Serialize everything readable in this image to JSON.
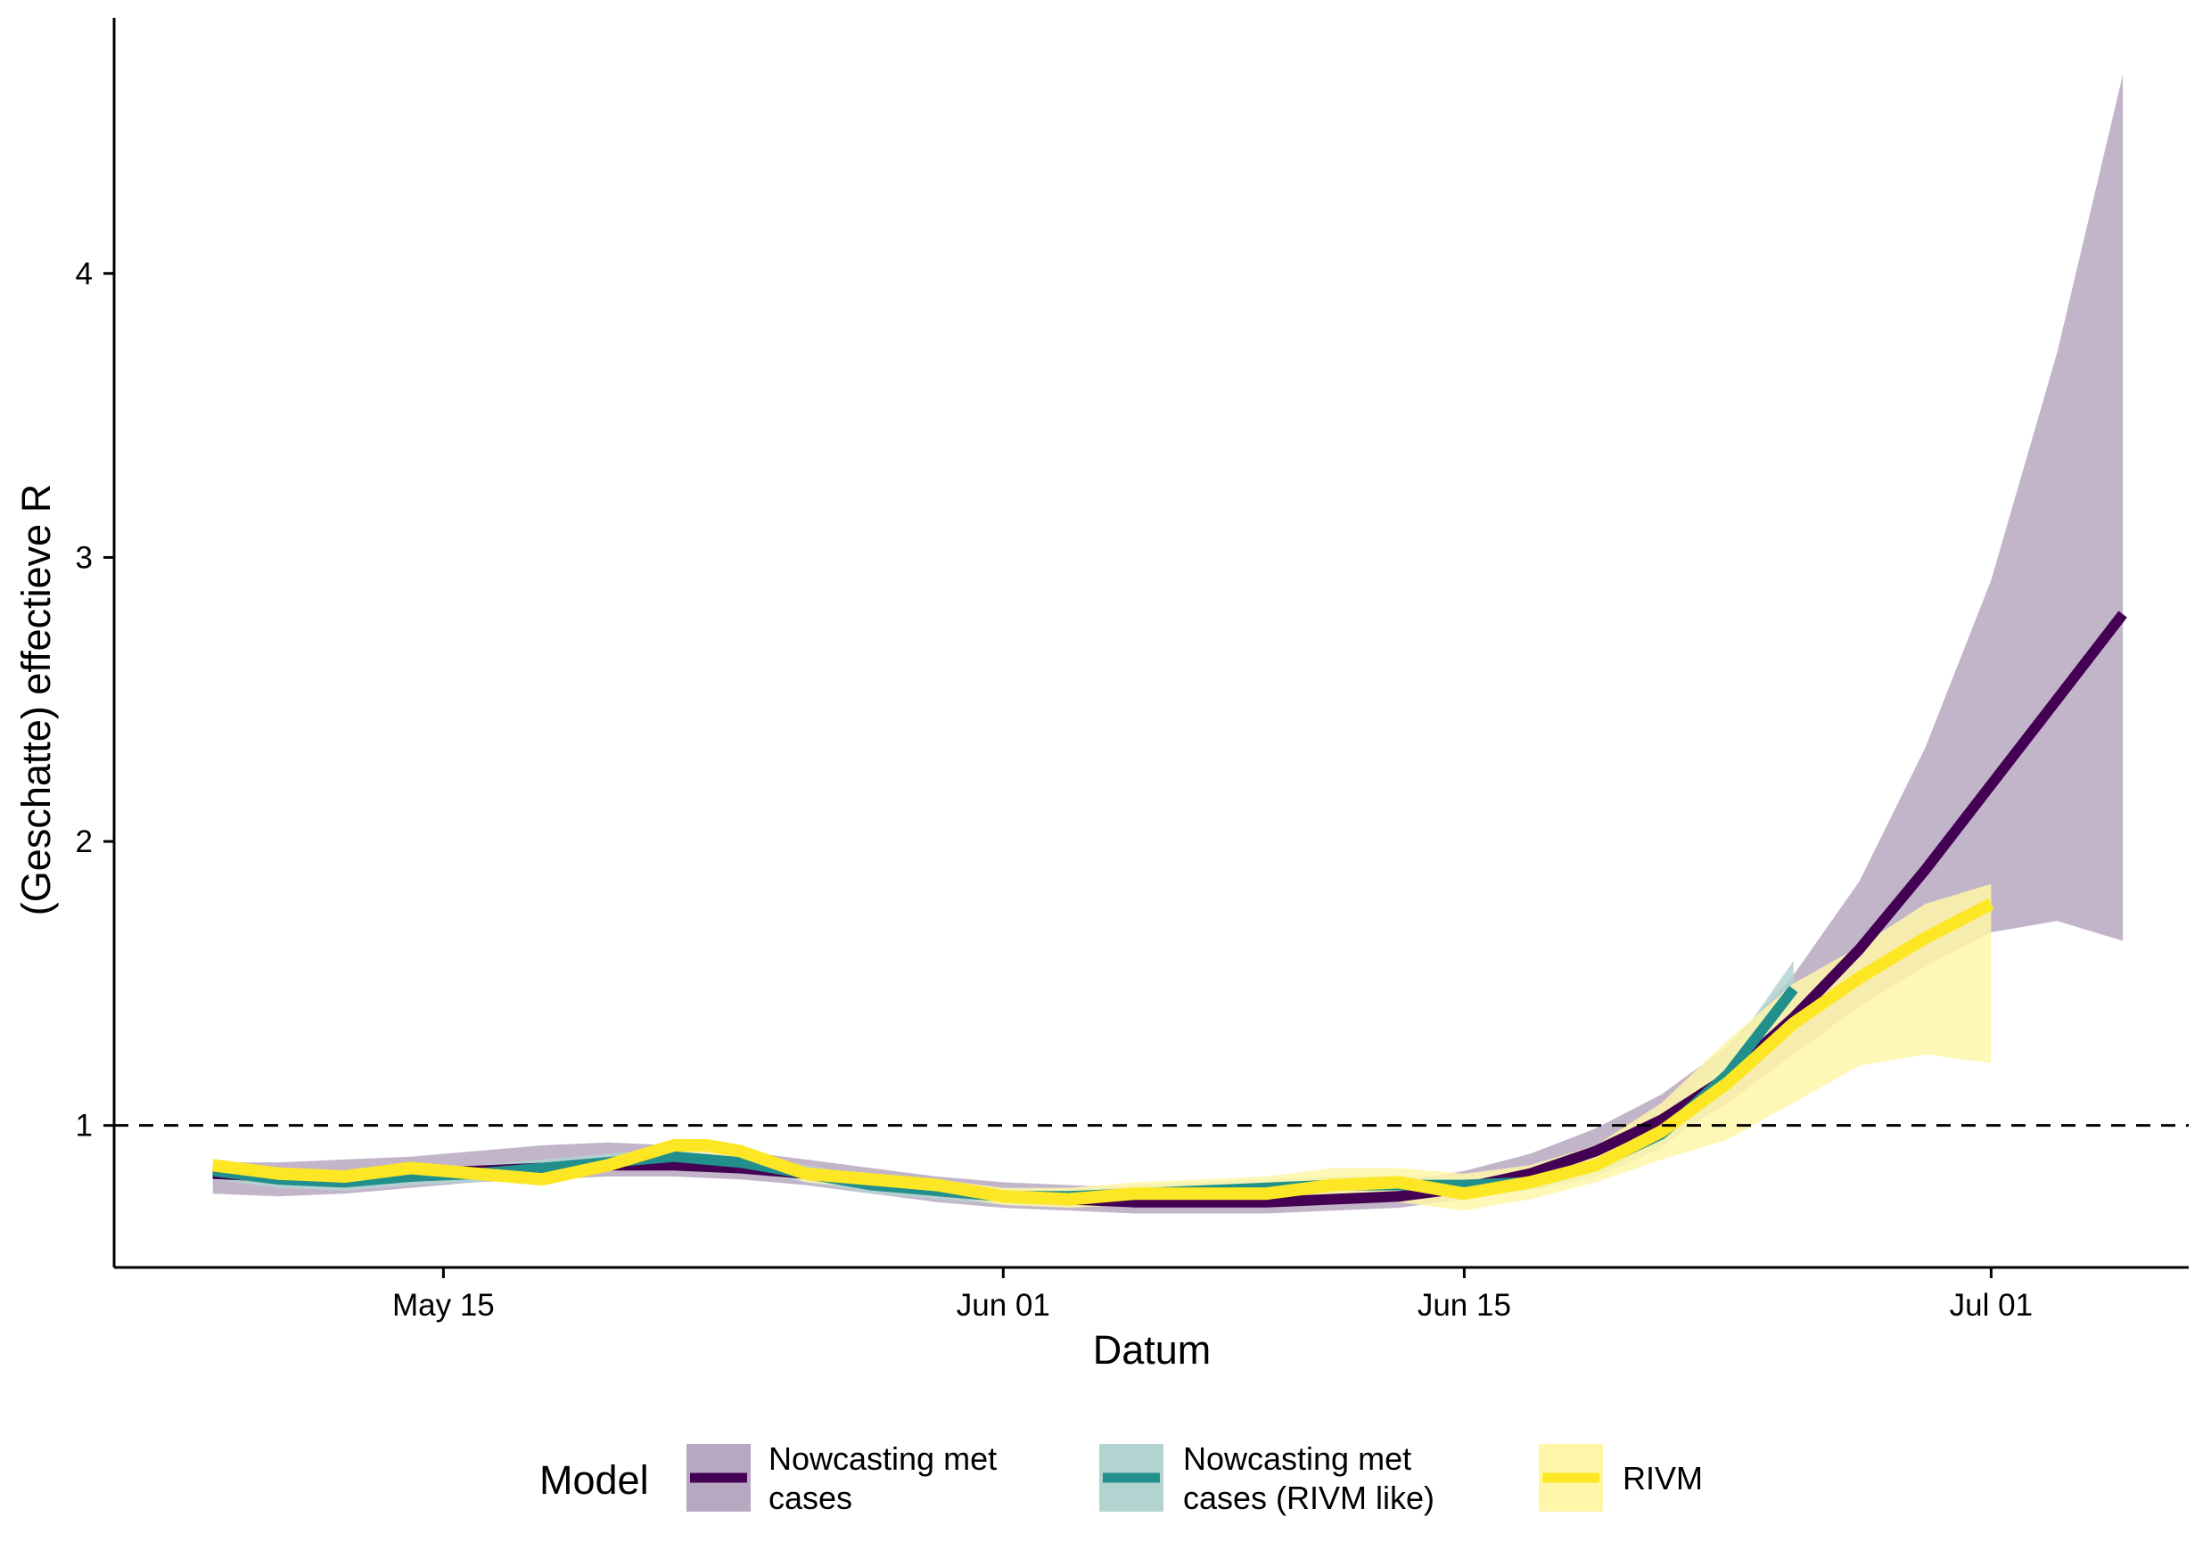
{
  "chart_data": {
    "type": "line",
    "title": "",
    "xlabel": "Datum",
    "ylabel": "(Geschatte) effectieve R",
    "x_axis_type": "date",
    "xlim": [
      "2020-05-05",
      "2020-07-07"
    ],
    "ylim": [
      0.5,
      4.9
    ],
    "x_ticks": [
      {
        "date": "2020-05-15",
        "label": "May 15"
      },
      {
        "date": "2020-06-01",
        "label": "Jun 01"
      },
      {
        "date": "2020-06-15",
        "label": "Jun 15"
      },
      {
        "date": "2020-07-01",
        "label": "Jul 01"
      }
    ],
    "y_ticks": [
      1,
      2,
      3,
      4
    ],
    "reference_line": {
      "y": 1,
      "style": "dashed",
      "color": "#000000"
    },
    "grid": false,
    "legend": {
      "title": "Model",
      "position": "bottom"
    },
    "series": [
      {
        "name": "Nowcasting met cases",
        "color": "#440154",
        "fill": "#B7A8C1",
        "x": [
          "2020-05-08",
          "2020-05-10",
          "2020-05-12",
          "2020-05-14",
          "2020-05-16",
          "2020-05-18",
          "2020-05-20",
          "2020-05-22",
          "2020-05-24",
          "2020-05-26",
          "2020-05-28",
          "2020-05-30",
          "2020-06-01",
          "2020-06-03",
          "2020-06-05",
          "2020-06-07",
          "2020-06-09",
          "2020-06-11",
          "2020-06-13",
          "2020-06-15",
          "2020-06-17",
          "2020-06-19",
          "2020-06-21",
          "2020-06-23",
          "2020-06-25",
          "2020-06-27",
          "2020-06-29",
          "2020-07-01",
          "2020-07-03",
          "2020-07-05"
        ],
        "y": [
          0.83,
          0.82,
          0.82,
          0.83,
          0.84,
          0.85,
          0.86,
          0.86,
          0.85,
          0.83,
          0.8,
          0.77,
          0.75,
          0.74,
          0.73,
          0.73,
          0.73,
          0.74,
          0.75,
          0.78,
          0.83,
          0.91,
          1.02,
          1.17,
          1.38,
          1.62,
          1.9,
          2.2,
          2.5,
          2.8
        ],
        "lower": [
          0.76,
          0.75,
          0.76,
          0.78,
          0.8,
          0.81,
          0.82,
          0.82,
          0.81,
          0.79,
          0.76,
          0.73,
          0.71,
          0.7,
          0.69,
          0.69,
          0.69,
          0.7,
          0.71,
          0.74,
          0.78,
          0.85,
          0.94,
          1.08,
          1.25,
          1.42,
          1.56,
          1.68,
          1.72,
          1.65
        ],
        "upper": [
          0.87,
          0.87,
          0.88,
          0.89,
          0.91,
          0.93,
          0.94,
          0.93,
          0.91,
          0.88,
          0.85,
          0.82,
          0.8,
          0.79,
          0.78,
          0.78,
          0.78,
          0.79,
          0.8,
          0.84,
          0.9,
          0.99,
          1.11,
          1.28,
          1.53,
          1.86,
          2.33,
          2.92,
          3.72,
          4.7
        ]
      },
      {
        "name": "Nowcasting met cases (RIVM like)",
        "color": "#21908C",
        "fill": "#B3D3D1",
        "x": [
          "2020-05-08",
          "2020-05-10",
          "2020-05-12",
          "2020-05-14",
          "2020-05-16",
          "2020-05-18",
          "2020-05-20",
          "2020-05-22",
          "2020-05-24",
          "2020-05-26",
          "2020-05-28",
          "2020-05-30",
          "2020-06-01",
          "2020-06-03",
          "2020-06-05",
          "2020-06-07",
          "2020-06-09",
          "2020-06-11",
          "2020-06-13",
          "2020-06-15",
          "2020-06-17",
          "2020-06-19",
          "2020-06-21",
          "2020-06-23",
          "2020-06-25"
        ],
        "y": [
          0.84,
          0.81,
          0.8,
          0.82,
          0.83,
          0.85,
          0.87,
          0.89,
          0.87,
          0.83,
          0.79,
          0.77,
          0.75,
          0.75,
          0.76,
          0.77,
          0.78,
          0.79,
          0.79,
          0.79,
          0.8,
          0.86,
          0.97,
          1.18,
          1.48
        ],
        "lower": [
          0.81,
          0.78,
          0.77,
          0.79,
          0.8,
          0.82,
          0.84,
          0.86,
          0.84,
          0.8,
          0.76,
          0.74,
          0.72,
          0.72,
          0.73,
          0.74,
          0.75,
          0.76,
          0.76,
          0.76,
          0.77,
          0.82,
          0.92,
          1.11,
          1.38
        ],
        "upper": [
          0.87,
          0.84,
          0.83,
          0.85,
          0.86,
          0.88,
          0.9,
          0.92,
          0.9,
          0.86,
          0.82,
          0.8,
          0.78,
          0.78,
          0.79,
          0.8,
          0.81,
          0.82,
          0.82,
          0.82,
          0.84,
          0.9,
          1.02,
          1.25,
          1.58
        ]
      },
      {
        "name": "RIVM",
        "color": "#FDE725",
        "fill": "#FFF6A9",
        "x": [
          "2020-05-08",
          "2020-05-10",
          "2020-05-12",
          "2020-05-14",
          "2020-05-16",
          "2020-05-18",
          "2020-05-20",
          "2020-05-22",
          "2020-05-23",
          "2020-05-24",
          "2020-05-26",
          "2020-05-28",
          "2020-05-30",
          "2020-06-01",
          "2020-06-03",
          "2020-06-05",
          "2020-06-07",
          "2020-06-09",
          "2020-06-11",
          "2020-06-13",
          "2020-06-15",
          "2020-06-17",
          "2020-06-19",
          "2020-06-21",
          "2020-06-23",
          "2020-06-25",
          "2020-06-27",
          "2020-06-29",
          "2020-07-01"
        ],
        "y": [
          0.86,
          0.83,
          0.82,
          0.85,
          0.83,
          0.81,
          0.86,
          0.93,
          0.93,
          0.91,
          0.83,
          0.81,
          0.79,
          0.75,
          0.74,
          0.76,
          0.76,
          0.76,
          0.79,
          0.8,
          0.76,
          0.8,
          0.86,
          0.98,
          1.15,
          1.36,
          1.52,
          1.66,
          1.78
        ],
        "lower": [
          0.84,
          0.81,
          0.8,
          0.83,
          0.81,
          0.79,
          0.84,
          0.9,
          0.9,
          0.88,
          0.8,
          0.78,
          0.76,
          0.72,
          0.71,
          0.72,
          0.72,
          0.72,
          0.73,
          0.73,
          0.7,
          0.74,
          0.8,
          0.88,
          0.95,
          1.08,
          1.21,
          1.25,
          1.22
        ],
        "upper": [
          0.88,
          0.85,
          0.84,
          0.87,
          0.85,
          0.83,
          0.88,
          0.95,
          0.95,
          0.93,
          0.85,
          0.83,
          0.81,
          0.78,
          0.78,
          0.8,
          0.81,
          0.82,
          0.85,
          0.85,
          0.83,
          0.86,
          0.93,
          1.08,
          1.3,
          1.5,
          1.63,
          1.78,
          1.85
        ]
      }
    ]
  }
}
